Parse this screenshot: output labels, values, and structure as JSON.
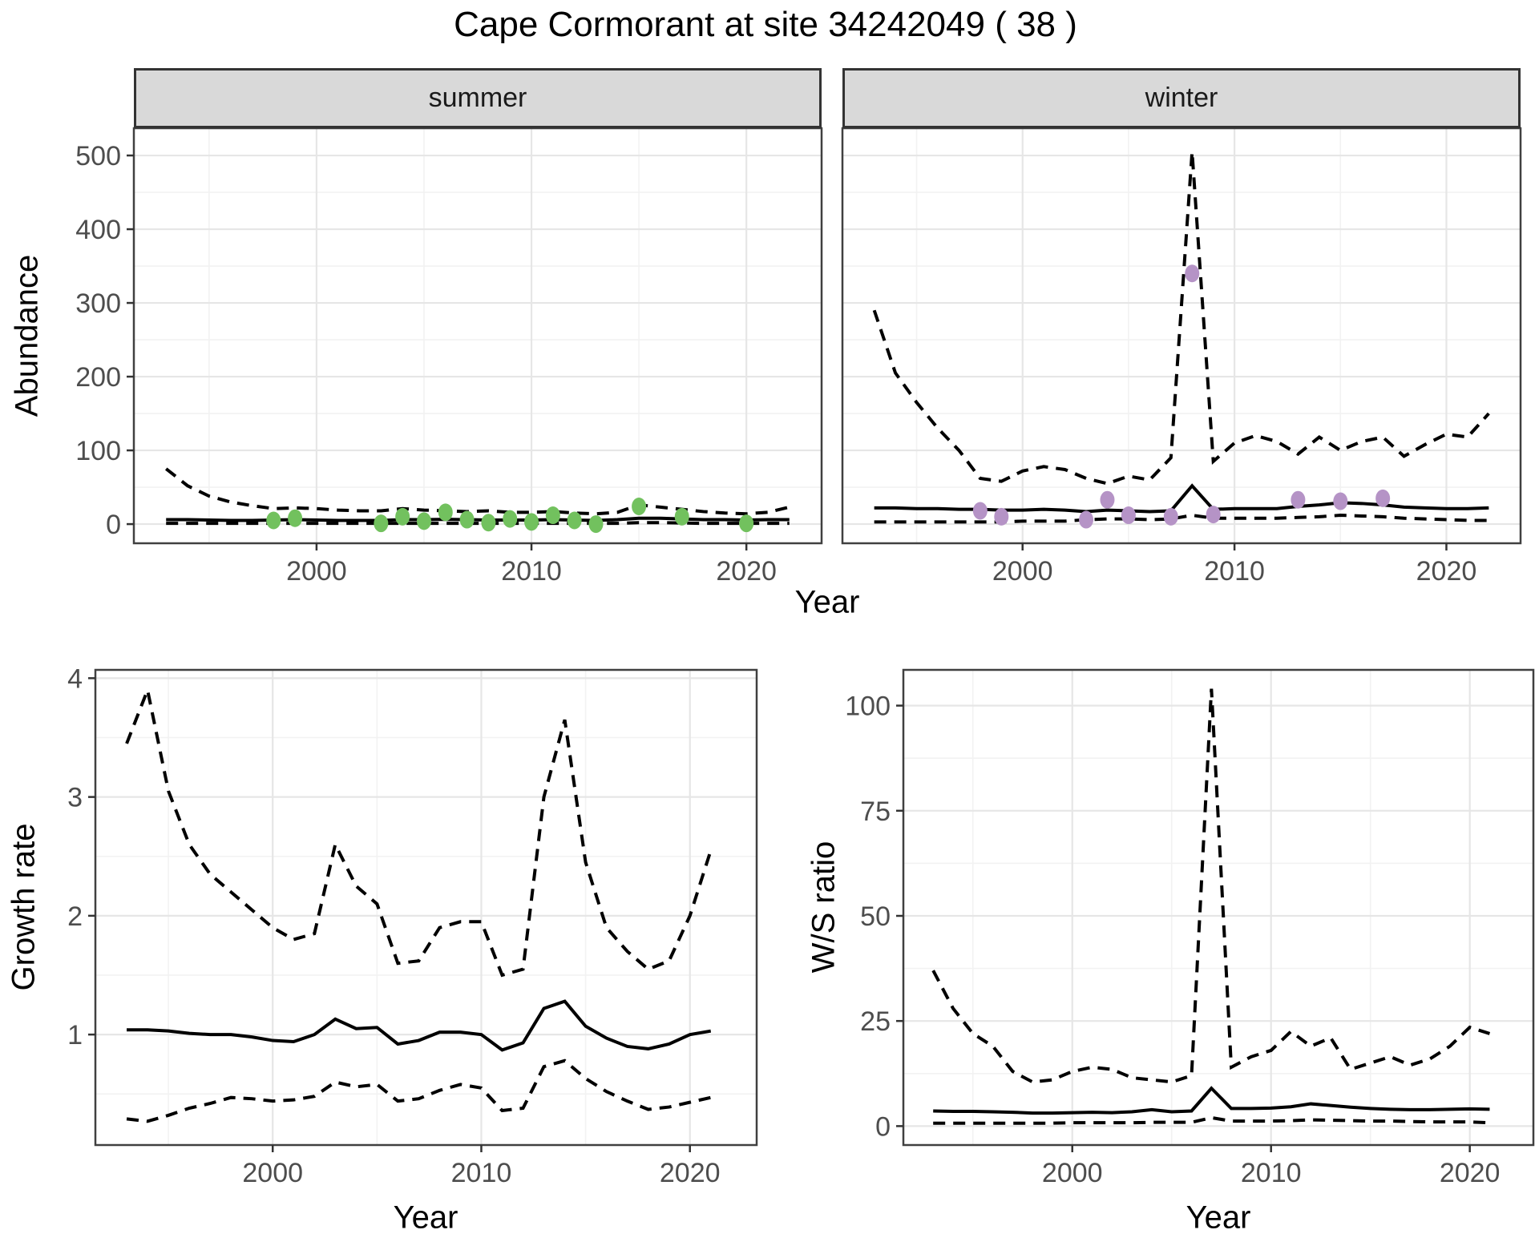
{
  "title": "Cape Cormorant at site 34242049 ( 38 )",
  "colors": {
    "background": "#FFFFFF",
    "line": "#000000",
    "panel_border": "#404040",
    "strip_bg": "#D9D9D9",
    "grid_major": "#E6E6E6",
    "grid_minor": "#F2F2F2",
    "axis_text": "#4D4D4D",
    "tick": "#333333",
    "summer_point": "#72C15E",
    "winter_point": "#B593C6"
  },
  "chart_data": [
    {
      "id": "abundance-summer",
      "type": "line",
      "facet": "summer",
      "xlabel": "Year",
      "ylabel": "Abundance",
      "xlim": [
        1991.5,
        2023.5
      ],
      "ylim": [
        -26,
        537
      ],
      "xticks": [
        2000,
        2010,
        2020
      ],
      "xminor": [
        1995,
        2005,
        2015
      ],
      "yticks": [
        0,
        100,
        200,
        300,
        400,
        500
      ],
      "yminor": [
        50,
        150,
        250,
        350,
        450
      ],
      "x": [
        1993,
        1994,
        1995,
        1996,
        1997,
        1998,
        1999,
        2000,
        2001,
        2002,
        2003,
        2004,
        2005,
        2006,
        2007,
        2008,
        2009,
        2010,
        2011,
        2012,
        2013,
        2014,
        2015,
        2016,
        2017,
        2018,
        2019,
        2020,
        2021,
        2022
      ],
      "series": [
        {
          "name": "median",
          "style": "solid",
          "values": [
            6,
            6,
            5.5,
            5,
            5,
            5.5,
            6,
            5.5,
            5,
            5,
            5,
            6,
            6,
            6.5,
            6,
            5.5,
            5.5,
            5.5,
            6,
            5.5,
            5,
            6,
            8,
            8,
            7,
            6,
            6,
            5.5,
            6,
            6
          ]
        },
        {
          "name": "upper-ci",
          "style": "dashed",
          "values": [
            75,
            52,
            38,
            30,
            25,
            21,
            22,
            21,
            19,
            18,
            18,
            21,
            19,
            18,
            17,
            18,
            16,
            16,
            17,
            15,
            14,
            16,
            26,
            23,
            20,
            17,
            15,
            14,
            16,
            23
          ]
        },
        {
          "name": "lower-ci",
          "style": "dashed",
          "values": [
            1,
            1,
            1,
            1,
            1,
            1,
            1,
            1,
            1,
            1,
            1,
            1,
            1,
            1,
            1,
            1,
            1,
            1,
            1,
            1,
            1,
            1,
            2,
            2,
            1.5,
            1,
            1,
            1,
            1,
            1
          ]
        }
      ],
      "points": {
        "color": "#72C15E",
        "x": [
          1998,
          1999,
          2003,
          2004,
          2005,
          2006,
          2007,
          2008,
          2009,
          2010,
          2011,
          2012,
          2013,
          2015,
          2017,
          2020
        ],
        "y": [
          5,
          8,
          1,
          10,
          4,
          16,
          6,
          2,
          7,
          3,
          12,
          5,
          0,
          24,
          10,
          1
        ]
      }
    },
    {
      "id": "abundance-winter",
      "type": "line",
      "facet": "winter",
      "xlabel": "Year",
      "ylabel": "Abundance",
      "xlim": [
        1991.5,
        2023.5
      ],
      "ylim": [
        -26,
        537
      ],
      "xticks": [
        2000,
        2010,
        2020
      ],
      "xminor": [
        1995,
        2005,
        2015
      ],
      "yticks": [
        0,
        100,
        200,
        300,
        400,
        500
      ],
      "yminor": [
        50,
        150,
        250,
        350,
        450
      ],
      "x": [
        1993,
        1994,
        1995,
        1996,
        1997,
        1998,
        1999,
        2000,
        2001,
        2002,
        2003,
        2004,
        2005,
        2006,
        2007,
        2008,
        2009,
        2010,
        2011,
        2012,
        2013,
        2014,
        2015,
        2016,
        2017,
        2018,
        2019,
        2020,
        2021,
        2022
      ],
      "series": [
        {
          "name": "median",
          "style": "solid",
          "values": [
            22,
            22,
            21,
            21,
            20,
            20,
            19,
            19,
            20,
            19,
            17,
            19,
            18,
            17,
            18,
            52,
            20,
            21,
            21,
            21,
            24,
            26,
            29,
            28,
            26,
            23,
            22,
            21,
            21,
            22
          ]
        },
        {
          "name": "upper-ci",
          "style": "dashed",
          "values": [
            290,
            205,
            165,
            130,
            100,
            62,
            58,
            72,
            78,
            74,
            62,
            55,
            65,
            60,
            90,
            505,
            85,
            110,
            120,
            112,
            95,
            118,
            100,
            112,
            118,
            92,
            108,
            122,
            118,
            150
          ]
        },
        {
          "name": "lower-ci",
          "style": "dashed",
          "values": [
            3,
            3,
            3,
            3,
            3,
            3,
            3,
            4,
            4,
            4,
            6,
            7,
            7,
            6,
            7,
            12,
            8,
            8,
            8,
            8,
            9,
            10,
            12,
            11,
            10,
            8,
            7,
            6,
            5,
            5
          ]
        }
      ],
      "points": {
        "color": "#B593C6",
        "x": [
          1998,
          1999,
          2003,
          2004,
          2005,
          2007,
          2008,
          2009,
          2013,
          2015,
          2017
        ],
        "y": [
          18,
          10,
          6,
          33,
          12,
          10,
          340,
          13,
          33,
          31,
          35
        ]
      }
    },
    {
      "id": "growth-rate",
      "type": "line",
      "xlabel": "Year",
      "ylabel": "Growth rate",
      "xlim": [
        1991.5,
        2023.2
      ],
      "ylim": [
        0.07,
        4.07
      ],
      "xticks": [
        2000,
        2010,
        2020
      ],
      "xminor": [
        1995,
        2005,
        2015
      ],
      "yticks": [
        1,
        2,
        3,
        4
      ],
      "yminor": [
        0.5,
        1.5,
        2.5,
        3.5
      ],
      "x": [
        1993,
        1994,
        1995,
        1996,
        1997,
        1998,
        1999,
        2000,
        2001,
        2002,
        2003,
        2004,
        2005,
        2006,
        2007,
        2008,
        2009,
        2010,
        2011,
        2012,
        2013,
        2014,
        2015,
        2016,
        2017,
        2018,
        2019,
        2020,
        2021
      ],
      "series": [
        {
          "name": "median",
          "style": "solid",
          "values": [
            1.04,
            1.04,
            1.03,
            1.01,
            1.0,
            1.0,
            0.98,
            0.95,
            0.94,
            1.0,
            1.13,
            1.05,
            1.06,
            0.92,
            0.95,
            1.02,
            1.02,
            1.0,
            0.87,
            0.93,
            1.22,
            1.28,
            1.07,
            0.97,
            0.9,
            0.88,
            0.92,
            1.0,
            1.03
          ]
        },
        {
          "name": "upper-ci",
          "style": "dashed",
          "values": [
            3.45,
            3.9,
            3.05,
            2.6,
            2.35,
            2.2,
            2.05,
            1.9,
            1.8,
            1.85,
            2.6,
            2.25,
            2.1,
            1.6,
            1.62,
            1.9,
            1.95,
            1.95,
            1.5,
            1.55,
            3.0,
            3.65,
            2.45,
            1.9,
            1.7,
            1.55,
            1.62,
            2.0,
            2.55
          ]
        },
        {
          "name": "lower-ci",
          "style": "dashed",
          "values": [
            0.29,
            0.27,
            0.32,
            0.38,
            0.42,
            0.47,
            0.46,
            0.44,
            0.45,
            0.48,
            0.6,
            0.56,
            0.58,
            0.44,
            0.46,
            0.53,
            0.58,
            0.55,
            0.36,
            0.38,
            0.73,
            0.78,
            0.63,
            0.52,
            0.44,
            0.37,
            0.39,
            0.43,
            0.47
          ]
        }
      ]
    },
    {
      "id": "ws-ratio",
      "type": "line",
      "xlabel": "Year",
      "ylabel": "W/S ratio",
      "xlim": [
        1991.5,
        2023.2
      ],
      "ylim": [
        -4.5,
        108.5
      ],
      "xticks": [
        2000,
        2010,
        2020
      ],
      "xminor": [
        1995,
        2005,
        2015
      ],
      "yticks": [
        0,
        25,
        50,
        75,
        100
      ],
      "yminor": [
        12.5,
        37.5,
        62.5,
        87.5
      ],
      "x": [
        1993,
        1994,
        1995,
        1996,
        1997,
        1998,
        1999,
        2000,
        2001,
        2002,
        2003,
        2004,
        2005,
        2006,
        2007,
        2008,
        2009,
        2010,
        2011,
        2012,
        2013,
        2014,
        2015,
        2016,
        2017,
        2018,
        2019,
        2020,
        2021
      ],
      "series": [
        {
          "name": "median",
          "style": "solid",
          "values": [
            3.6,
            3.5,
            3.5,
            3.4,
            3.3,
            3.1,
            3.1,
            3.2,
            3.3,
            3.2,
            3.4,
            3.9,
            3.4,
            3.6,
            9.0,
            4.2,
            4.2,
            4.3,
            4.6,
            5.3,
            4.9,
            4.5,
            4.2,
            4.0,
            3.9,
            3.9,
            4.0,
            4.1,
            4.0
          ]
        },
        {
          "name": "upper-ci",
          "style": "dashed",
          "values": [
            37,
            28,
            22,
            19,
            13,
            10.5,
            11,
            13,
            14,
            13.5,
            11.5,
            11,
            10.5,
            12,
            104,
            14,
            16.5,
            18,
            22.5,
            19,
            21,
            13.5,
            15,
            16.5,
            14.5,
            16,
            19,
            23.5,
            22
          ]
        },
        {
          "name": "lower-ci",
          "style": "dashed",
          "values": [
            0.7,
            0.7,
            0.7,
            0.7,
            0.7,
            0.7,
            0.7,
            0.8,
            0.8,
            0.8,
            0.8,
            0.9,
            0.9,
            0.9,
            2.0,
            1.2,
            1.2,
            1.2,
            1.3,
            1.5,
            1.4,
            1.3,
            1.2,
            1.2,
            1.1,
            1.0,
            1.0,
            1.0,
            0.8
          ]
        }
      ]
    }
  ]
}
